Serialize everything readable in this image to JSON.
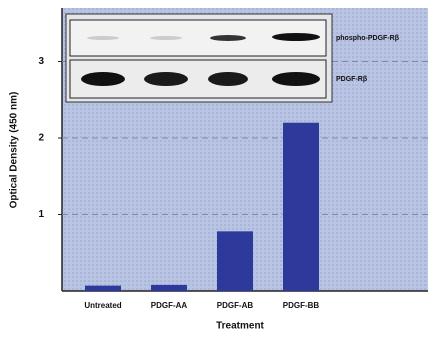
{
  "chart_data": {
    "type": "bar",
    "x_label": "Treatment",
    "y_label": "Optical Density (450 nm)",
    "categories": [
      "Untreated",
      "PDGF-AA",
      "PDGF-AB",
      "PDGF-BB"
    ],
    "values": [
      0.07,
      0.08,
      0.78,
      2.2
    ],
    "color": "#2d3a9c",
    "ylim": [
      0,
      3.7
    ],
    "yticks": [
      1,
      2,
      3
    ],
    "grid": true,
    "blot_labels": [
      "phospho-PDGF-Rβ",
      "PDGF-Rβ"
    ]
  }
}
